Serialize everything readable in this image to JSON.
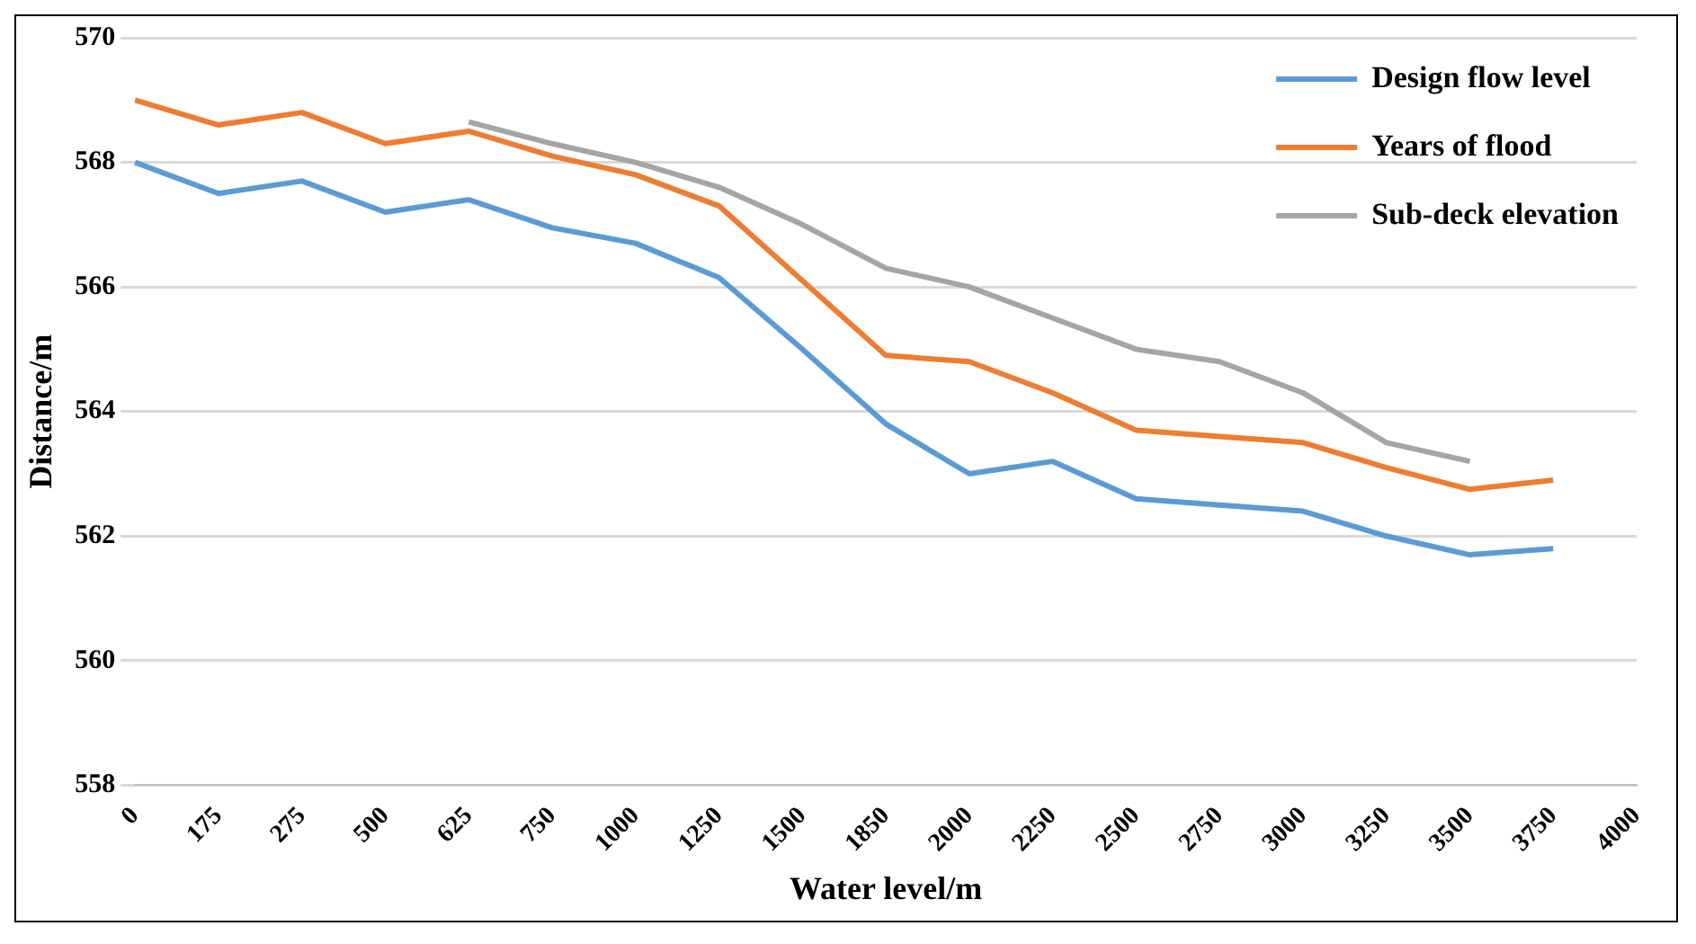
{
  "chart_data": {
    "type": "line",
    "xlabel": "Water level/m",
    "ylabel": "Distance/m",
    "categories": [
      "0",
      "175",
      "275",
      "500",
      "625",
      "750",
      "1000",
      "1250",
      "1500",
      "1850",
      "2000",
      "2250",
      "2500",
      "2750",
      "3000",
      "3250",
      "3500",
      "3750",
      "4000"
    ],
    "series": [
      {
        "name": "Design flow level",
        "color": "#5b9bd5",
        "values": [
          568,
          567.5,
          567.7,
          567.2,
          567.4,
          566.95,
          566.7,
          566.15,
          565,
          563.8,
          563,
          563.2,
          562.6,
          562.5,
          562.4,
          562,
          561.7,
          561.8,
          null
        ]
      },
      {
        "name": "Years of flood",
        "color": "#ed7d31",
        "values": [
          569,
          568.6,
          568.8,
          568.3,
          568.5,
          568.1,
          567.8,
          567.3,
          566.1,
          564.9,
          564.8,
          564.3,
          563.7,
          563.6,
          563.5,
          563.1,
          562.75,
          562.9,
          null
        ]
      },
      {
        "name": "Sub-deck elevation",
        "color": "#a5a5a5",
        "values": [
          null,
          null,
          null,
          null,
          568.65,
          568.3,
          568,
          567.6,
          567,
          566.3,
          566,
          565.5,
          565,
          564.8,
          564.3,
          563.5,
          563.2,
          null,
          null
        ]
      }
    ],
    "ylim": [
      558,
      570
    ],
    "yticks": [
      558,
      560,
      562,
      564,
      566,
      568,
      570
    ],
    "grid": "y",
    "legend": "top right",
    "marker": "none",
    "line_style": "solid"
  }
}
